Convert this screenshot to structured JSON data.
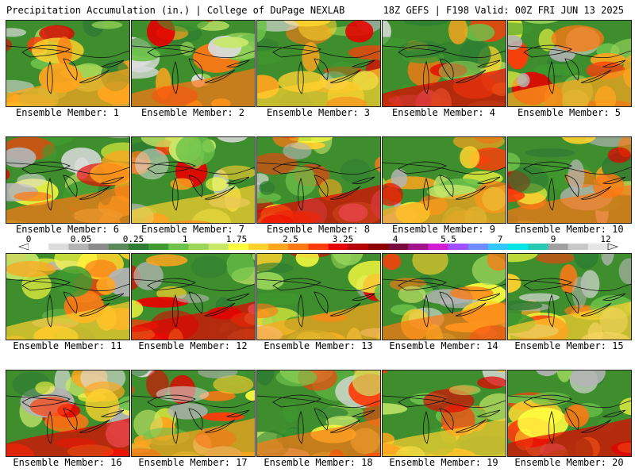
{
  "header": {
    "left": "Precipitation Accumulation (in.) | College of DuPage NEXLAB",
    "right": "18Z GEFS | F198 Valid: 00Z FRI JUN 13 2025"
  },
  "panels": [
    "Ensemble Member: 1",
    "Ensemble Member: 2",
    "Ensemble Member: 3",
    "Ensemble Member: 4",
    "Ensemble Member: 5",
    "Ensemble Member: 6",
    "Ensemble Member: 7",
    "Ensemble Member: 8",
    "Ensemble Member: 9",
    "Ensemble Member: 10",
    "Ensemble Member: 11",
    "Ensemble Member: 12",
    "Ensemble Member: 13",
    "Ensemble Member: 14",
    "Ensemble Member: 15",
    "Ensemble Member: 16",
    "Ensemble Member: 17",
    "Ensemble Member: 18",
    "Ensemble Member: 19",
    "Ensemble Member: 20"
  ],
  "colorbar": {
    "ticks": [
      "0",
      "0.05",
      "0.25",
      "1",
      "1.75",
      "2.5",
      "3.25",
      "4",
      "5.5",
      "7",
      "9",
      "12"
    ],
    "colors": [
      "#ffffff",
      "#dcdcdc",
      "#b4b4b4",
      "#8c8c8c",
      "#5a8a5a",
      "#2e7d32",
      "#3f9a2f",
      "#6cc24a",
      "#9bd65a",
      "#c8e86a",
      "#ffff40",
      "#ffd22e",
      "#ffa51e",
      "#ff7814",
      "#ff3c0a",
      "#e60000",
      "#b40000",
      "#8c0000",
      "#780a3c",
      "#a0148c",
      "#d21ed2",
      "#a050ff",
      "#6e8cff",
      "#32c8ff",
      "#00e6e6",
      "#28c8b4",
      "#a0a0a0",
      "#c8c8c8",
      "#e6e6e6"
    ]
  }
}
